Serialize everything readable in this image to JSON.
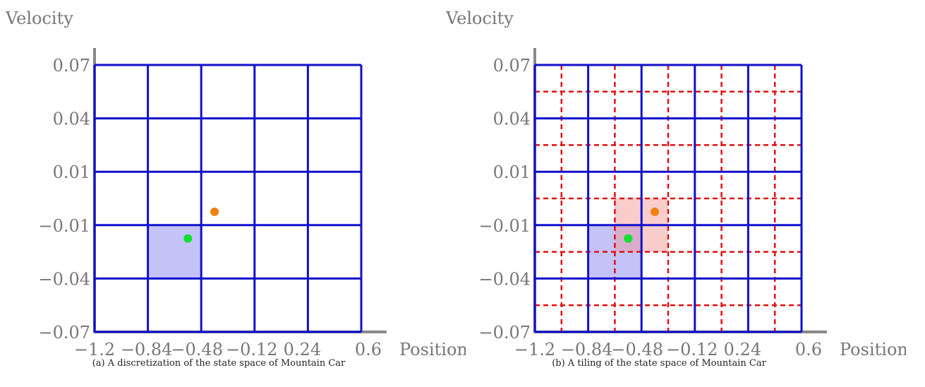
{
  "panels": [
    {
      "id": "a",
      "caption": "(a) A discretization of the state space of Mountain Car",
      "y_axis_title": "Velocity",
      "x_axis_title": "Position",
      "x_ticks": [
        "−1.2",
        "−0.84",
        "−0.48",
        "−0.12",
        "0.24",
        "0.6"
      ],
      "y_ticks": [
        "0.07",
        "0.04",
        "0.01",
        "−0.01",
        "−0.04",
        "−0.07"
      ],
      "grid_color": "#1010cc",
      "highlight_cells": [
        {
          "col": 1,
          "row": 3,
          "color": "#7b7bf0"
        }
      ],
      "points": [
        {
          "name": "orange-point",
          "color": "#f08010",
          "col_f": 2.25,
          "row_f": 2.75
        },
        {
          "name": "green-point",
          "color": "#10e030",
          "col_f": 1.75,
          "row_f": 3.25
        }
      ],
      "tiling": false
    },
    {
      "id": "b",
      "caption": "(b) A tiling of the state space of Mountain Car",
      "y_axis_title": "Velocity",
      "x_axis_title": "Position",
      "x_ticks": [
        "−1.2",
        "−0.84",
        "−0.48",
        "−0.12",
        "0.24",
        "0.6"
      ],
      "y_ticks": [
        "0.07",
        "0.04",
        "0.01",
        "−0.01",
        "−0.04",
        "−0.07"
      ],
      "grid_color": "#1010cc",
      "tiling_color": "#e01010",
      "highlight_cells": [
        {
          "col": 1,
          "row": 3,
          "color": "#7b7bf0"
        },
        {
          "col": 1.5,
          "row": 2.5,
          "color": "#f59090"
        }
      ],
      "points": [
        {
          "name": "orange-point",
          "color": "#f08010",
          "col_f": 2.25,
          "row_f": 2.75
        },
        {
          "name": "green-point",
          "color": "#10e030",
          "col_f": 1.75,
          "row_f": 3.25
        }
      ],
      "tiling": true
    }
  ]
}
